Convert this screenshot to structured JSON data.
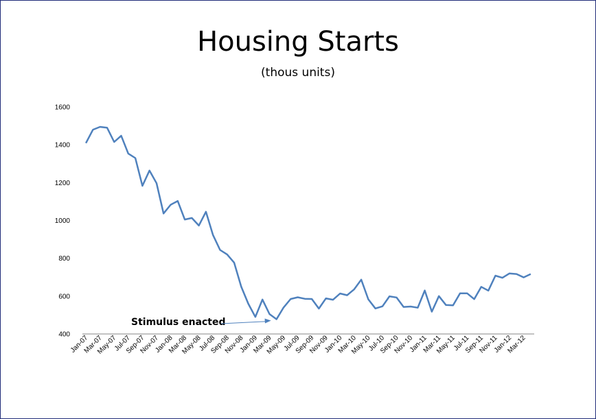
{
  "chart_data": {
    "type": "line",
    "title": "Housing Starts",
    "subtitle": "(thous units)",
    "xlabel": "",
    "ylabel": "",
    "ylim": [
      400,
      1600
    ],
    "yticks": [
      400,
      600,
      800,
      1000,
      1200,
      1400,
      1600
    ],
    "grid": false,
    "legend": "none",
    "line_color": "#4f81bd",
    "x_tick_labels": [
      "Jan-07",
      "Mar-07",
      "May-07",
      "Jul-07",
      "Sep-07",
      "Nov-07",
      "Jan-08",
      "Mar-08",
      "May-08",
      "Jul-08",
      "Sep-08",
      "Nov-08",
      "Jan-09",
      "Mar-09",
      "May-09",
      "Jul-09",
      "Sep-09",
      "Nov-09",
      "Jan-10",
      "Mar-10",
      "May-10",
      "Jul-10",
      "Sep-10",
      "Nov-10",
      "Jan-11",
      "Mar-11",
      "May-11",
      "Jul-11",
      "Sep-11",
      "Nov-11",
      "Jan-12",
      "Mar-12"
    ],
    "series": [
      {
        "values": [
          1409,
          1480,
          1495,
          1490,
          1415,
          1448,
          1354,
          1330,
          1183,
          1264,
          1197,
          1037,
          1083,
          1103,
          1005,
          1013,
          973,
          1046,
          923,
          844,
          820,
          777,
          650,
          560,
          490,
          582,
          505,
          478,
          540,
          585,
          594,
          586,
          585,
          534,
          588,
          581,
          614,
          605,
          636,
          687,
          583,
          535,
          546,
          599,
          593,
          543,
          545,
          539,
          630,
          518,
          600,
          553,
          551,
          615,
          615,
          584,
          649,
          629,
          708,
          697,
          720,
          717,
          699,
          717
        ]
      }
    ],
    "annotations": [
      {
        "text": "Stimulus enacted",
        "target_index": 27
      }
    ]
  }
}
